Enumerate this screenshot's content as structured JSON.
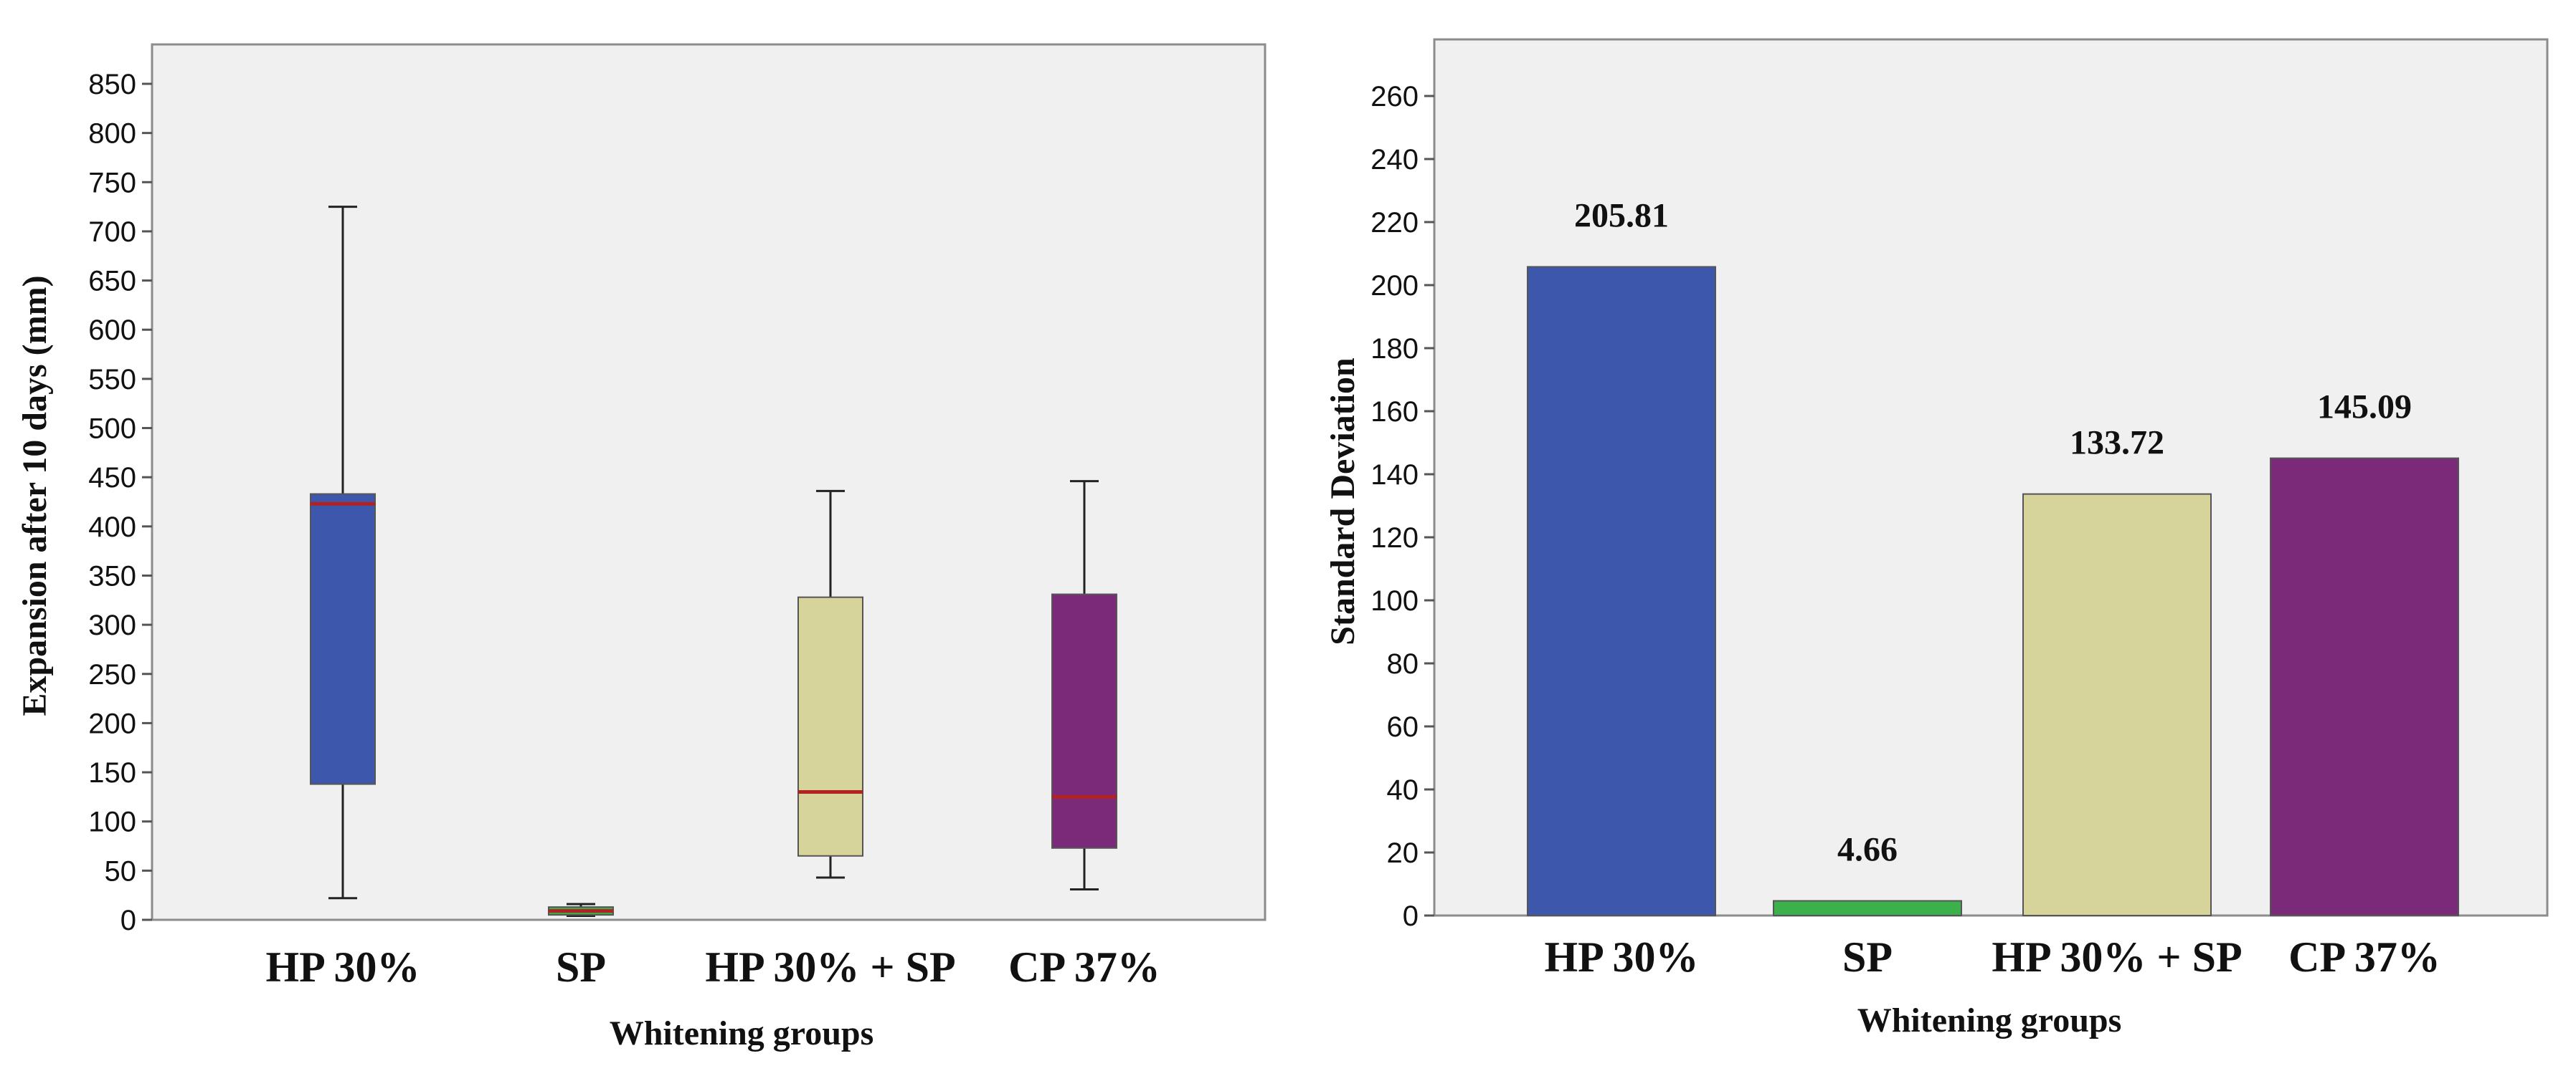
{
  "chart_data": [
    {
      "type": "boxplot",
      "title": "",
      "xlabel": "Whitening groups",
      "ylabel": "Expansion after 10 days (mm)",
      "ylim": [
        0,
        850
      ],
      "yticks": [
        0,
        50,
        100,
        150,
        200,
        250,
        300,
        350,
        400,
        450,
        500,
        550,
        600,
        650,
        700,
        750,
        800,
        850
      ],
      "grid": false,
      "categories": [
        "HP 30%",
        "SP",
        "HP 30% + SP",
        "CP 37%"
      ],
      "series": [
        {
          "name": "HP 30%",
          "min": 22,
          "q1": 138,
          "median": 423,
          "q3": 433,
          "max": 725,
          "color": "#3d57ac"
        },
        {
          "name": "SP",
          "min": 4,
          "q1": 5,
          "median": 9,
          "q3": 13,
          "max": 16,
          "color": "#3cb04b"
        },
        {
          "name": "HP 30% + SP",
          "min": 43,
          "q1": 65,
          "median": 130,
          "q3": 328,
          "max": 436,
          "color": "#d6d39b"
        },
        {
          "name": "CP 37%",
          "min": 31,
          "q1": 73,
          "median": 125,
          "q3": 331,
          "max": 446,
          "color": "#7b2a7a"
        }
      ],
      "median_color": "#b22222"
    },
    {
      "type": "bar",
      "title": "",
      "xlabel": "Whitening groups",
      "ylabel": "Standard Deviation",
      "ylim": [
        0,
        270
      ],
      "yticks": [
        0,
        20,
        40,
        60,
        80,
        100,
        120,
        140,
        160,
        180,
        200,
        220,
        240,
        260
      ],
      "grid": false,
      "categories": [
        "HP 30%",
        "SP",
        "HP 30% + SP",
        "CP 37%"
      ],
      "values": [
        205.81,
        4.66,
        133.72,
        145.09
      ],
      "value_labels": [
        "205.81",
        "4.66",
        "133.72",
        "145.09"
      ],
      "colors": [
        "#3d57ac",
        "#3cb04b",
        "#d6d39b",
        "#7b2a7a"
      ]
    }
  ]
}
